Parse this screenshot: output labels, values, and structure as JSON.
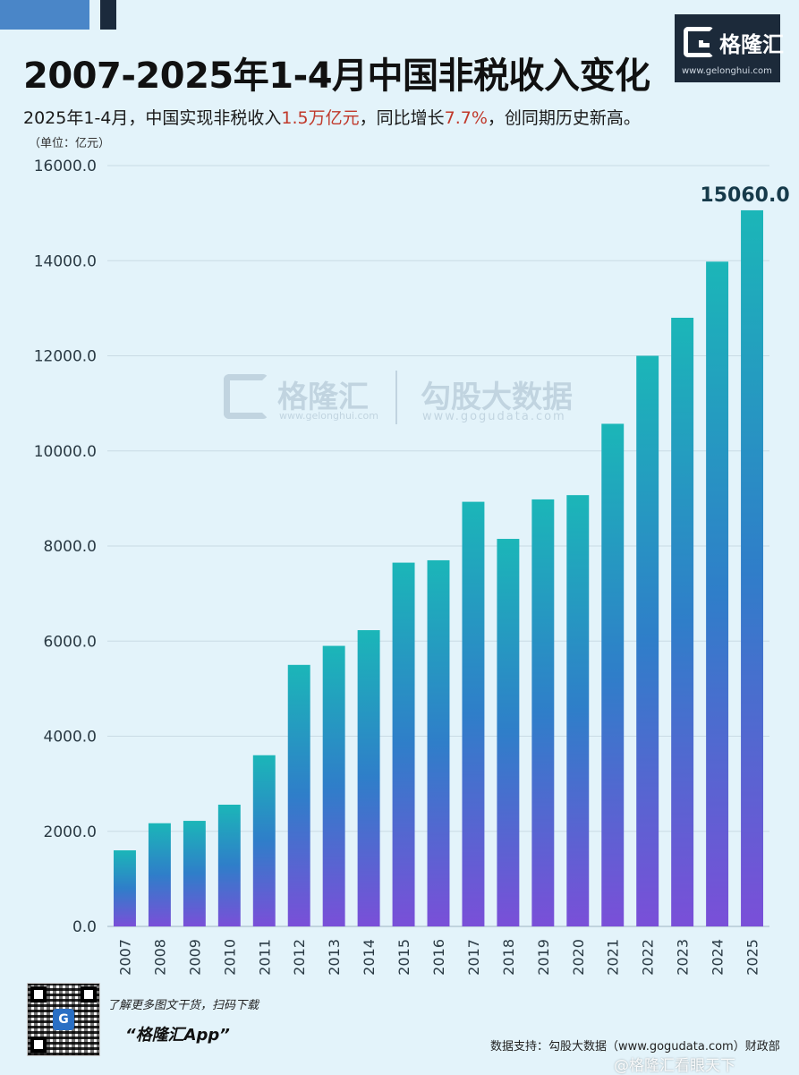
{
  "header": {
    "title": "2007-2025年1-4月中国非税收入变化",
    "subtitle_prefix": "2025年1-4月，中国实现非税收入",
    "subtitle_value1": "1.5万亿元",
    "subtitle_mid": "，同比增长",
    "subtitle_value2": "7.7%",
    "subtitle_suffix": "，创同期历史新高。",
    "unit_label": "（单位：亿元）",
    "highlight_color": "#c0392b"
  },
  "logo": {
    "name": "格隆汇",
    "url": "www.gelonghui.com"
  },
  "watermark": {
    "name1": "格隆汇",
    "url1": "www.gelonghui.com",
    "name2": "勾股大数据",
    "url2": "www.gogudata.com"
  },
  "footer": {
    "promo_line": "了解更多图文干货，扫码下载",
    "app_name": "“格隆汇App”",
    "source": "数据支持：勾股大数据（www.gogudata.com）财政部",
    "weibo": "@格隆汇看眼天下"
  },
  "chart_data": {
    "type": "bar",
    "title": "2007-2025年1-4月中国非税收入变化",
    "ylabel": "（单位：亿元）",
    "xlabel": "",
    "categories": [
      "2007",
      "2008",
      "2009",
      "2010",
      "2011",
      "2012",
      "2013",
      "2014",
      "2015",
      "2016",
      "2017",
      "2018",
      "2019",
      "2020",
      "2021",
      "2022",
      "2023",
      "2024",
      "2025"
    ],
    "values": [
      1600,
      2170,
      2220,
      2560,
      3600,
      5500,
      5900,
      6230,
      7650,
      7700,
      8930,
      8150,
      8980,
      9070,
      10570,
      12000,
      12800,
      13980,
      15060
    ],
    "ylim": [
      0,
      16000
    ],
    "yticks": [
      "0.0",
      "2000.0",
      "4000.0",
      "6000.0",
      "8000.0",
      "10000.0",
      "12000.0",
      "14000.0",
      "16000.0"
    ],
    "ytick_values": [
      0,
      2000,
      4000,
      6000,
      8000,
      10000,
      12000,
      14000,
      16000
    ],
    "data_labels": [
      {
        "category": "2025",
        "text": "15060.0"
      }
    ],
    "grid": true,
    "colors": {
      "bar_top": "#1bb6b8",
      "bar_mid": "#2f7ec9",
      "bar_bottom": "#7a4fd8",
      "grid": "#c9dbe4",
      "label": "#163a4a"
    }
  }
}
